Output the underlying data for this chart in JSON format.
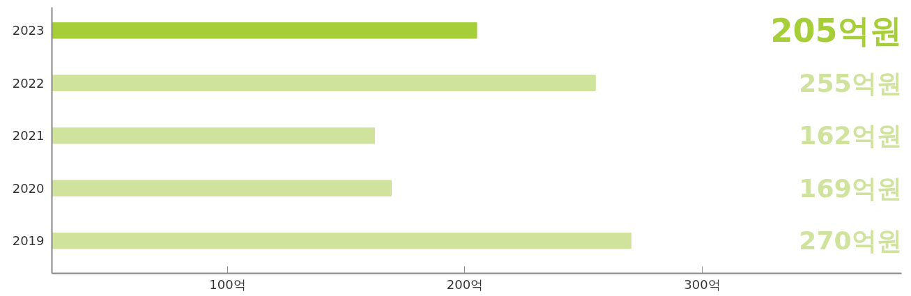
{
  "chart_data": {
    "type": "bar",
    "orientation": "horizontal",
    "categories": [
      "2023",
      "2022",
      "2021",
      "2020",
      "2019"
    ],
    "values": [
      205,
      255,
      162,
      169,
      270
    ],
    "colors": [
      "#a6ce39",
      "#d0e39c",
      "#d0e39c",
      "#d0e39c",
      "#d0e39c"
    ],
    "value_labels": [
      "205억원",
      "255억원",
      "162억원",
      "169억원",
      "270억원"
    ],
    "xlim": [
      26,
      384
    ],
    "xticks": [
      {
        "value": 100,
        "label": "100억"
      },
      {
        "value": 200,
        "label": "200억"
      },
      {
        "value": 300,
        "label": "300억"
      }
    ],
    "grid": false
  }
}
